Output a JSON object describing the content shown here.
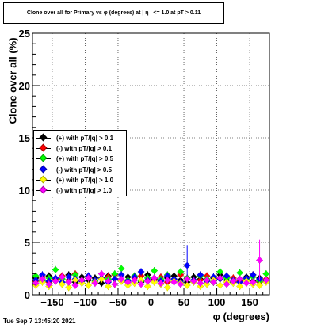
{
  "title": "Clone  over all for Primary vs φ (degrees) at |  η | <= 1.0 at pT > 0.11",
  "footer": "Tue Sep  7 13:45:20 2021",
  "chart_data": {
    "type": "scatter",
    "xlabel": "φ (degrees)",
    "ylabel": "Clone  over all (%)",
    "xlim": [
      -180,
      180
    ],
    "ylim": [
      0,
      25
    ],
    "x_ticks": [
      -150,
      -100,
      -50,
      0,
      50,
      100,
      150
    ],
    "x_tick_labels": [
      "−150",
      "−100",
      "−50",
      "0",
      "50",
      "100",
      "150"
    ],
    "y_ticks": [
      0,
      5,
      10,
      15,
      20,
      25
    ],
    "y_tick_labels": [
      "0",
      "5",
      "10",
      "15",
      "20",
      "25"
    ],
    "grid": true,
    "legend_position": "center-left",
    "series": [
      {
        "name": "(+) with pT/|q| > 0.1",
        "color": "#000000",
        "x": [
          -175,
          -165,
          -155,
          -145,
          -135,
          -125,
          -115,
          -105,
          -95,
          -85,
          -75,
          -65,
          -55,
          -45,
          -35,
          -25,
          -15,
          -5,
          5,
          15,
          25,
          35,
          45,
          55,
          65,
          75,
          85,
          95,
          105,
          115,
          125,
          135,
          145,
          155,
          165,
          175
        ],
        "y": [
          1.6,
          1.4,
          1.8,
          1.3,
          1.5,
          1.9,
          1.2,
          1.7,
          1.4,
          1.6,
          1.1,
          1.8,
          1.5,
          1.3,
          1.7,
          1.4,
          1.2,
          1.9,
          1.5,
          1.3,
          1.6,
          1.8,
          1.4,
          1.2,
          1.7,
          1.5,
          1.3,
          1.6,
          1.9,
          1.4,
          1.2,
          1.5,
          1.7,
          1.3,
          1.6,
          1.4
        ]
      },
      {
        "name": "(-) with pT/|q| > 0.1",
        "color": "#ff0000",
        "x": [
          -175,
          -165,
          -155,
          -145,
          -135,
          -125,
          -115,
          -105,
          -95,
          -85,
          -75,
          -65,
          -55,
          -45,
          -35,
          -25,
          -15,
          -5,
          5,
          15,
          25,
          35,
          45,
          55,
          65,
          75,
          85,
          95,
          105,
          115,
          125,
          135,
          145,
          155,
          165,
          175
        ],
        "y": [
          1.3,
          1.7,
          1.2,
          1.5,
          1.8,
          1.4,
          2.0,
          1.3,
          1.6,
          1.2,
          1.5,
          1.7,
          1.9,
          1.4,
          1.2,
          1.6,
          1.8,
          1.3,
          1.4,
          1.7,
          1.2,
          1.5,
          1.9,
          1.6,
          1.3,
          1.4,
          1.8,
          1.2,
          1.5,
          1.7,
          1.6,
          1.3,
          1.4,
          1.9,
          1.2,
          1.5
        ]
      },
      {
        "name": "(+) with pT/|q| > 0.5",
        "color": "#00ff00",
        "x": [
          -175,
          -165,
          -155,
          -145,
          -135,
          -125,
          -115,
          -105,
          -95,
          -85,
          -75,
          -65,
          -55,
          -45,
          -35,
          -25,
          -15,
          -5,
          5,
          15,
          25,
          35,
          45,
          55,
          65,
          75,
          85,
          95,
          105,
          115,
          125,
          135,
          145,
          155,
          165,
          175
        ],
        "y": [
          1.8,
          1.3,
          1.6,
          2.4,
          1.5,
          1.2,
          1.9,
          1.4,
          1.7,
          1.3,
          1.6,
          1.5,
          2.0,
          2.5,
          1.4,
          1.8,
          1.3,
          1.6,
          2.3,
          1.5,
          1.9,
          1.3,
          2.2,
          1.6,
          1.4,
          1.8,
          1.5,
          1.2,
          2.2,
          1.6,
          1.4,
          2.1,
          1.5,
          1.7,
          1.3,
          2.0
        ]
      },
      {
        "name": "(-) with pT/|q| > 0.5",
        "color": "#0000ff",
        "x": [
          -175,
          -165,
          -155,
          -145,
          -135,
          -125,
          -115,
          -105,
          -95,
          -85,
          -75,
          -65,
          -55,
          -45,
          -35,
          -25,
          -15,
          -5,
          5,
          15,
          25,
          35,
          45,
          55,
          65,
          75,
          85,
          95,
          105,
          115,
          125,
          135,
          145,
          155,
          165,
          175
        ],
        "y": [
          1.4,
          1.9,
          1.3,
          1.6,
          1.2,
          1.7,
          1.5,
          1.3,
          1.8,
          1.4,
          1.6,
          1.2,
          1.5,
          1.9,
          1.3,
          1.7,
          2.2,
          1.4,
          1.6,
          1.3,
          1.8,
          1.5,
          1.2,
          2.8,
          1.4,
          1.9,
          1.3,
          1.7,
          1.5,
          1.8,
          1.4,
          1.2,
          1.6,
          1.9,
          1.5,
          1.3
        ]
      },
      {
        "name": "(+) with pT/|q| > 1.0",
        "color": "#ffff00",
        "x": [
          -175,
          -165,
          -155,
          -145,
          -135,
          -125,
          -115,
          -105,
          -95,
          -85,
          -75,
          -65,
          -55,
          -45,
          -35,
          -25,
          -15,
          -5,
          5,
          15,
          25,
          35,
          45,
          55,
          65,
          75,
          85,
          95,
          105,
          115,
          125,
          135,
          145,
          155,
          165,
          175
        ],
        "y": [
          0.9,
          1.2,
          0.8,
          1.3,
          1.0,
          0.7,
          1.4,
          1.1,
          0.9,
          1.2,
          1.5,
          0.8,
          1.0,
          1.3,
          0.9,
          1.1,
          1.4,
          0.8,
          1.2,
          1.0,
          0.7,
          1.3,
          1.1,
          0.9,
          1.2,
          0.8,
          1.0,
          1.4,
          0.9,
          1.2,
          1.1,
          0.8,
          1.3,
          1.0,
          0.9,
          1.2
        ]
      },
      {
        "name": "(-) with pT/|q| > 1.0",
        "color": "#ff00ff",
        "x": [
          -175,
          -165,
          -155,
          -145,
          -135,
          -125,
          -115,
          -105,
          -95,
          -85,
          -75,
          -65,
          -55,
          -45,
          -35,
          -25,
          -15,
          -5,
          5,
          15,
          25,
          35,
          45,
          55,
          65,
          75,
          85,
          95,
          105,
          115,
          125,
          135,
          145,
          155,
          165,
          175
        ],
        "y": [
          1.1,
          1.5,
          1.0,
          1.3,
          1.7,
          1.2,
          0.9,
          1.4,
          1.6,
          1.1,
          2.0,
          1.3,
          1.0,
          1.5,
          1.2,
          1.4,
          1.0,
          1.3,
          1.6,
          1.1,
          1.4,
          1.2,
          1.0,
          1.5,
          1.3,
          1.1,
          1.4,
          1.2,
          1.6,
          1.0,
          1.3,
          1.5,
          1.1,
          1.2,
          3.3,
          1.4
        ]
      }
    ]
  }
}
